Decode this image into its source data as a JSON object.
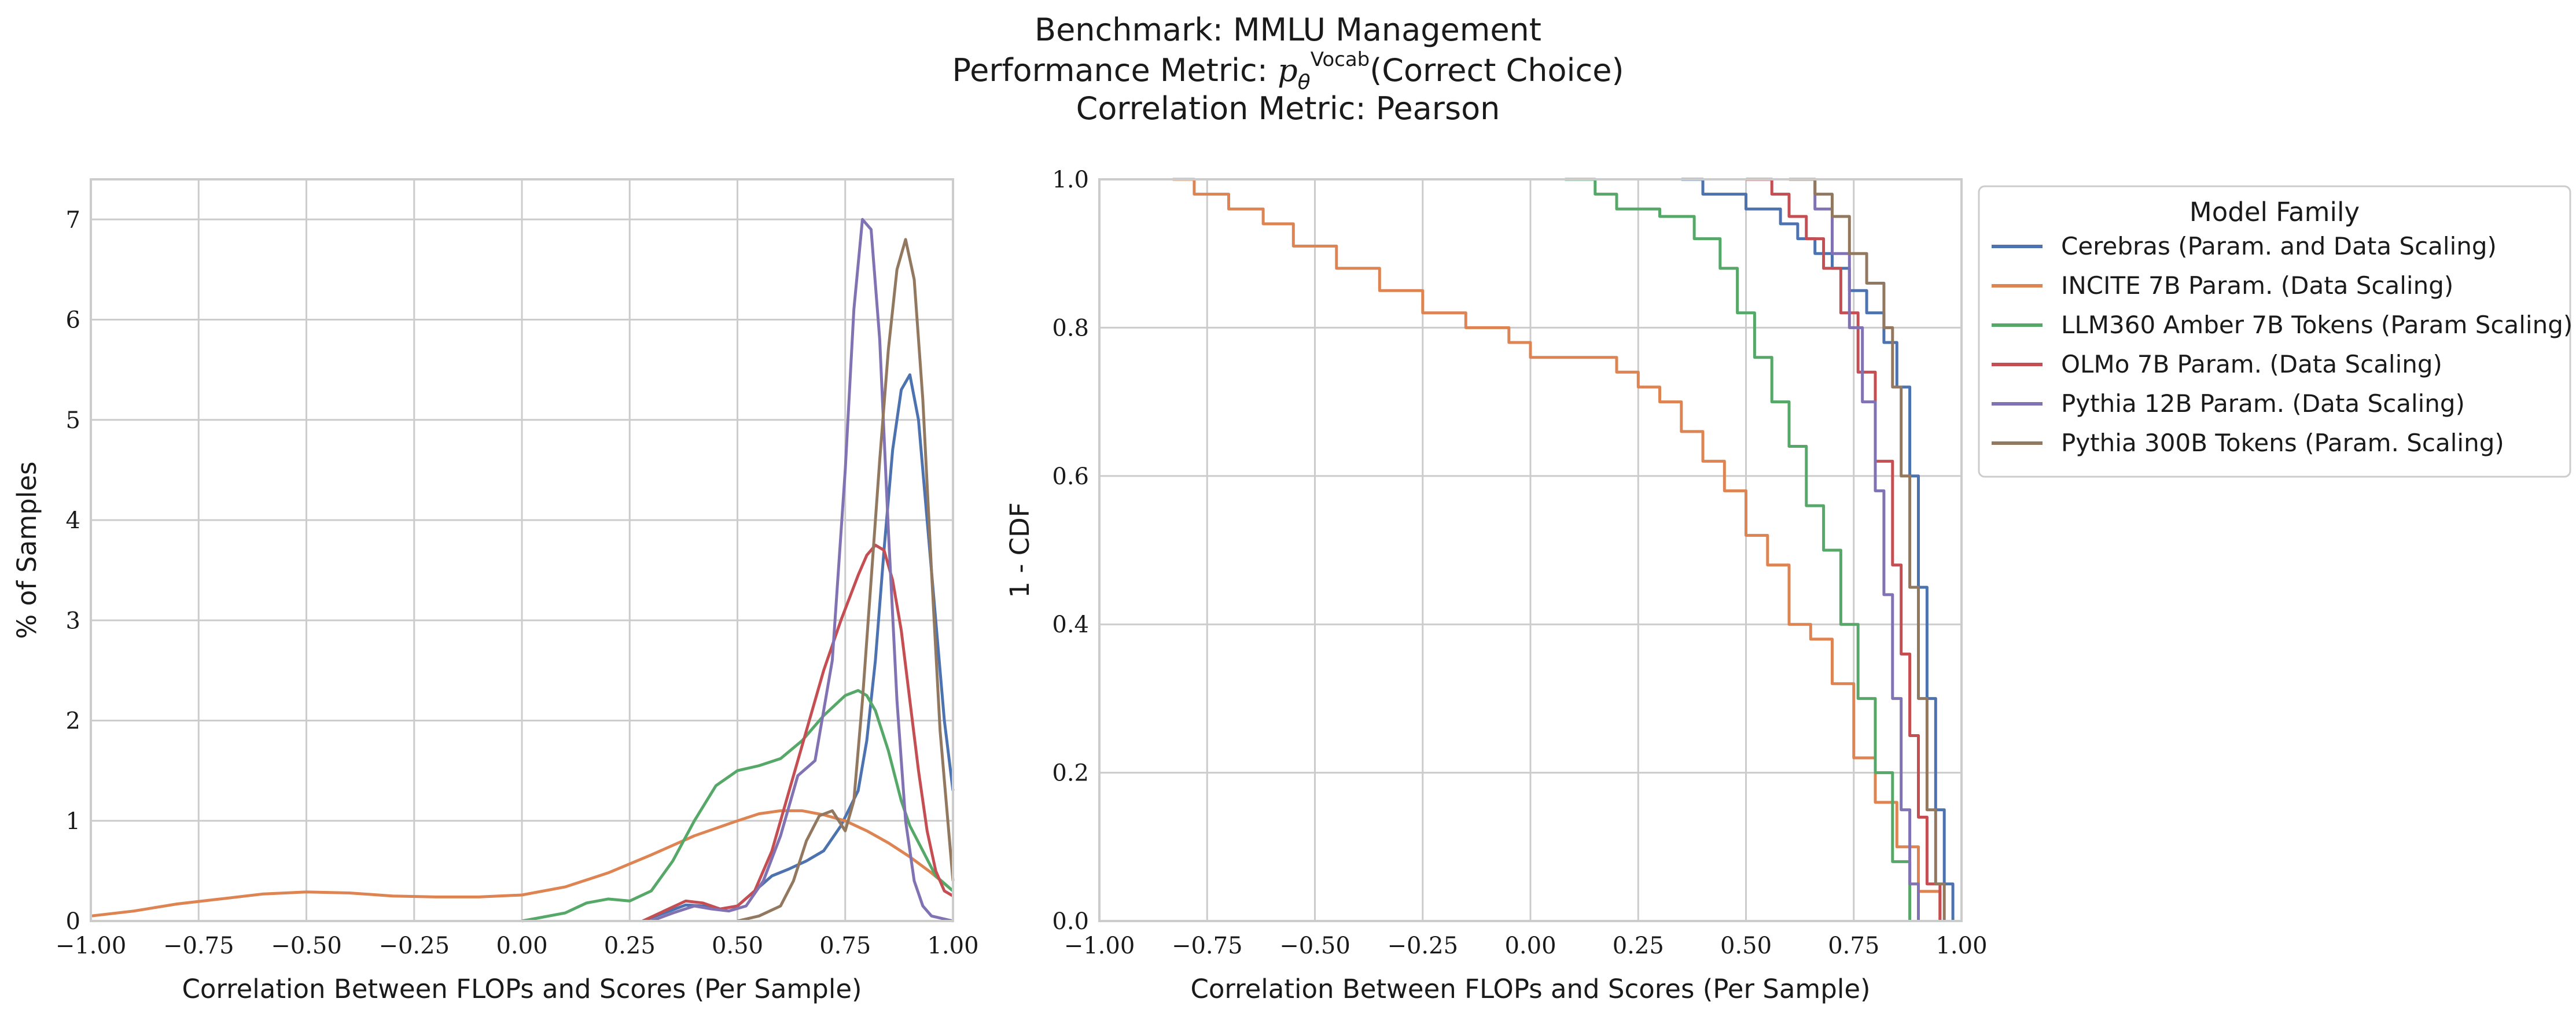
{
  "title_lines": [
    "Benchmark: MMLU Management",
    "Performance Metric: pθVocab(Correct Choice)",
    "Correlation Metric: Pearson"
  ],
  "title_parts": {
    "line1": "Benchmark: MMLU Management",
    "line2_prefix": "Performance Metric: ",
    "line2_symbol": "p",
    "line2_sub": "θ",
    "line2_sup": "Vocab",
    "line2_suffix": "(Correct Choice)",
    "line3": "Correlation Metric: Pearson"
  },
  "legend": {
    "title": "Model Family",
    "placement": "outside-right of right panel, top"
  },
  "chart_data": [
    {
      "type": "line",
      "kind": "kde",
      "xlabel": "Correlation Between FLOPs and Scores (Per Sample)",
      "ylabel": "% of Samples",
      "xlim": [
        -1.0,
        1.0
      ],
      "ylim": [
        0,
        7.4
      ],
      "xticks": [
        -1.0,
        -0.75,
        -0.5,
        -0.25,
        0.0,
        0.25,
        0.5,
        0.75,
        1.0
      ],
      "xtick_labels": [
        "−1.00",
        "−0.75",
        "−0.50",
        "−0.25",
        "0.00",
        "0.25",
        "0.50",
        "0.75",
        "1.00"
      ],
      "yticks": [
        0,
        1,
        2,
        3,
        4,
        5,
        6,
        7
      ],
      "ytick_labels": [
        "0",
        "1",
        "2",
        "3",
        "4",
        "5",
        "6",
        "7"
      ],
      "grid": true,
      "series": [
        {
          "name": "Cerebras (Param. and Data Scaling)",
          "color": "#4c72b0",
          "x": [
            0.28,
            0.33,
            0.38,
            0.42,
            0.46,
            0.5,
            0.54,
            0.58,
            0.62,
            0.66,
            0.7,
            0.74,
            0.78,
            0.8,
            0.82,
            0.84,
            0.86,
            0.88,
            0.9,
            0.92,
            0.94,
            0.96,
            0.98,
            1.0
          ],
          "y": [
            0.0,
            0.08,
            0.16,
            0.15,
            0.12,
            0.15,
            0.3,
            0.45,
            0.52,
            0.6,
            0.7,
            0.95,
            1.3,
            1.8,
            2.6,
            3.7,
            4.7,
            5.3,
            5.45,
            5.0,
            4.0,
            3.0,
            2.0,
            1.3
          ]
        },
        {
          "name": "INCITE 7B Param. (Data Scaling)",
          "color": "#dd8452",
          "x": [
            -1.0,
            -0.9,
            -0.8,
            -0.7,
            -0.6,
            -0.5,
            -0.4,
            -0.3,
            -0.2,
            -0.1,
            0.0,
            0.1,
            0.2,
            0.3,
            0.4,
            0.5,
            0.55,
            0.6,
            0.65,
            0.7,
            0.75,
            0.8,
            0.85,
            0.9,
            0.95,
            1.0
          ],
          "y": [
            0.05,
            0.1,
            0.17,
            0.22,
            0.27,
            0.29,
            0.28,
            0.25,
            0.24,
            0.24,
            0.26,
            0.34,
            0.48,
            0.66,
            0.85,
            1.0,
            1.07,
            1.1,
            1.1,
            1.06,
            1.0,
            0.9,
            0.78,
            0.64,
            0.48,
            0.3
          ]
        },
        {
          "name": "LLM360 Amber 7B Tokens (Param Scaling)",
          "color": "#55a868",
          "x": [
            0.0,
            0.1,
            0.15,
            0.2,
            0.25,
            0.3,
            0.35,
            0.4,
            0.45,
            0.5,
            0.55,
            0.6,
            0.65,
            0.7,
            0.75,
            0.78,
            0.8,
            0.82,
            0.85,
            0.88,
            0.9,
            0.93,
            0.96,
            1.0
          ],
          "y": [
            0.0,
            0.08,
            0.18,
            0.22,
            0.2,
            0.3,
            0.6,
            1.0,
            1.35,
            1.5,
            1.55,
            1.62,
            1.8,
            2.05,
            2.25,
            2.3,
            2.25,
            2.1,
            1.7,
            1.2,
            0.95,
            0.7,
            0.45,
            0.3
          ]
        },
        {
          "name": "OLMo 7B Param. (Data Scaling)",
          "color": "#c44e52",
          "x": [
            0.28,
            0.33,
            0.38,
            0.42,
            0.46,
            0.5,
            0.54,
            0.58,
            0.62,
            0.66,
            0.7,
            0.74,
            0.78,
            0.8,
            0.82,
            0.84,
            0.86,
            0.88,
            0.9,
            0.92,
            0.94,
            0.96,
            0.98,
            1.0
          ],
          "y": [
            0.0,
            0.1,
            0.2,
            0.18,
            0.12,
            0.15,
            0.3,
            0.7,
            1.3,
            1.9,
            2.5,
            3.0,
            3.45,
            3.65,
            3.75,
            3.7,
            3.4,
            2.9,
            2.2,
            1.5,
            0.9,
            0.5,
            0.3,
            0.25
          ]
        },
        {
          "name": "Pythia 12B Param. (Data Scaling)",
          "color": "#8172b3",
          "x": [
            0.3,
            0.35,
            0.4,
            0.44,
            0.48,
            0.52,
            0.56,
            0.6,
            0.64,
            0.68,
            0.72,
            0.75,
            0.77,
            0.79,
            0.81,
            0.83,
            0.85,
            0.87,
            0.89,
            0.91,
            0.93,
            0.95,
            1.0
          ],
          "y": [
            0.0,
            0.08,
            0.15,
            0.12,
            0.1,
            0.15,
            0.4,
            0.85,
            1.45,
            1.6,
            2.6,
            4.5,
            6.1,
            7.0,
            6.9,
            5.8,
            3.9,
            2.2,
            1.0,
            0.4,
            0.15,
            0.05,
            0.0
          ]
        },
        {
          "name": "Pythia 300B Tokens (Param. Scaling)",
          "color": "#937860",
          "x": [
            0.5,
            0.55,
            0.6,
            0.63,
            0.66,
            0.69,
            0.72,
            0.75,
            0.77,
            0.79,
            0.81,
            0.83,
            0.85,
            0.87,
            0.89,
            0.91,
            0.93,
            0.95,
            0.97,
            1.0
          ],
          "y": [
            0.0,
            0.05,
            0.15,
            0.4,
            0.8,
            1.05,
            1.1,
            0.9,
            1.2,
            2.2,
            3.4,
            4.6,
            5.7,
            6.5,
            6.8,
            6.4,
            5.2,
            3.5,
            1.9,
            0.4
          ]
        }
      ]
    },
    {
      "type": "line",
      "kind": "complementary-ecdf-step",
      "xlabel": "Correlation Between FLOPs and Scores (Per Sample)",
      "ylabel": "1 - CDF",
      "xlim": [
        -1.0,
        1.0
      ],
      "ylim": [
        0.0,
        1.0
      ],
      "xticks": [
        -1.0,
        -0.75,
        -0.5,
        -0.25,
        0.0,
        0.25,
        0.5,
        0.75,
        1.0
      ],
      "xtick_labels": [
        "−1.00",
        "−0.75",
        "−0.50",
        "−0.25",
        "0.00",
        "0.25",
        "0.50",
        "0.75",
        "1.00"
      ],
      "yticks": [
        0.0,
        0.2,
        0.4,
        0.6,
        0.8,
        1.0
      ],
      "ytick_labels": [
        "0.0",
        "0.2",
        "0.4",
        "0.6",
        "0.8",
        "1.0"
      ],
      "grid": true,
      "series": [
        {
          "name": "Cerebras (Param. and Data Scaling)",
          "color": "#4c72b0",
          "x": [
            0.35,
            0.4,
            0.5,
            0.58,
            0.62,
            0.66,
            0.7,
            0.74,
            0.78,
            0.82,
            0.85,
            0.88,
            0.9,
            0.92,
            0.94,
            0.96,
            0.98
          ],
          "y": [
            1.0,
            0.98,
            0.96,
            0.94,
            0.92,
            0.9,
            0.88,
            0.85,
            0.82,
            0.78,
            0.72,
            0.6,
            0.45,
            0.3,
            0.15,
            0.05,
            0.0
          ]
        },
        {
          "name": "INCITE 7B Param. (Data Scaling)",
          "color": "#dd8452",
          "x": [
            -0.83,
            -0.78,
            -0.7,
            -0.62,
            -0.55,
            -0.45,
            -0.35,
            -0.25,
            -0.15,
            -0.05,
            0.0,
            0.1,
            0.2,
            0.25,
            0.3,
            0.35,
            0.4,
            0.45,
            0.5,
            0.55,
            0.6,
            0.65,
            0.7,
            0.75,
            0.8,
            0.85,
            0.9,
            0.95
          ],
          "y": [
            1.0,
            0.98,
            0.96,
            0.94,
            0.91,
            0.88,
            0.85,
            0.82,
            0.8,
            0.78,
            0.76,
            0.76,
            0.74,
            0.72,
            0.7,
            0.66,
            0.62,
            0.58,
            0.52,
            0.48,
            0.4,
            0.38,
            0.32,
            0.22,
            0.16,
            0.1,
            0.04,
            0.0
          ]
        },
        {
          "name": "LLM360 Amber 7B Tokens (Param Scaling)",
          "color": "#55a868",
          "x": [
            0.08,
            0.15,
            0.2,
            0.3,
            0.38,
            0.44,
            0.48,
            0.52,
            0.56,
            0.6,
            0.64,
            0.68,
            0.72,
            0.76,
            0.8,
            0.84,
            0.88
          ],
          "y": [
            1.0,
            0.98,
            0.96,
            0.95,
            0.92,
            0.88,
            0.82,
            0.76,
            0.7,
            0.64,
            0.56,
            0.5,
            0.4,
            0.3,
            0.2,
            0.08,
            0.0
          ]
        },
        {
          "name": "OLMo 7B Param. (Data Scaling)",
          "color": "#c44e52",
          "x": [
            0.5,
            0.56,
            0.6,
            0.64,
            0.68,
            0.72,
            0.76,
            0.8,
            0.84,
            0.86,
            0.88,
            0.9,
            0.92,
            0.95
          ],
          "y": [
            1.0,
            0.98,
            0.95,
            0.92,
            0.88,
            0.82,
            0.74,
            0.62,
            0.48,
            0.36,
            0.25,
            0.14,
            0.05,
            0.0
          ]
        },
        {
          "name": "Pythia 12B Param. (Data Scaling)",
          "color": "#8172b3",
          "x": [
            0.62,
            0.66,
            0.7,
            0.74,
            0.77,
            0.8,
            0.82,
            0.84,
            0.86,
            0.88,
            0.9
          ],
          "y": [
            1.0,
            0.96,
            0.9,
            0.8,
            0.7,
            0.58,
            0.44,
            0.3,
            0.15,
            0.05,
            0.0
          ]
        },
        {
          "name": "Pythia 300B Tokens (Param. Scaling)",
          "color": "#937860",
          "x": [
            0.6,
            0.66,
            0.7,
            0.74,
            0.78,
            0.82,
            0.84,
            0.86,
            0.88,
            0.9,
            0.92,
            0.94,
            0.96
          ],
          "y": [
            1.0,
            0.98,
            0.95,
            0.9,
            0.86,
            0.8,
            0.72,
            0.6,
            0.45,
            0.3,
            0.15,
            0.05,
            0.0
          ]
        }
      ]
    }
  ]
}
